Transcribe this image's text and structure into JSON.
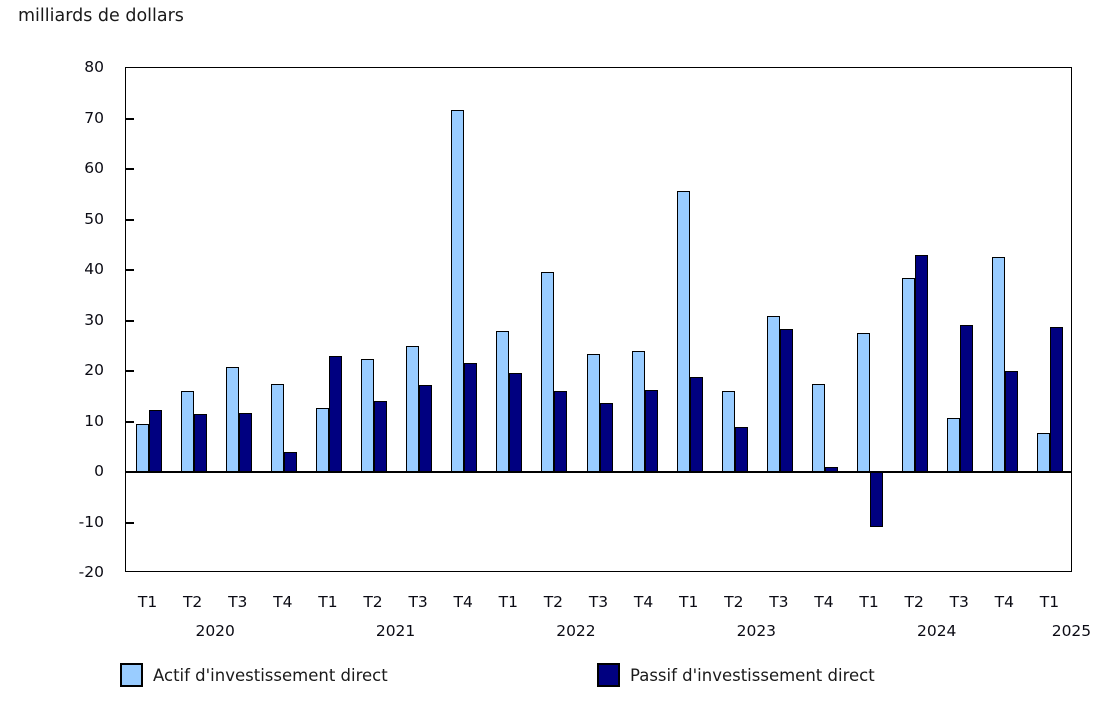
{
  "title": "milliards de dollars",
  "legend": [
    {
      "label": "Actif d'investissement direct",
      "color": "#99CCFF"
    },
    {
      "label": "Passif d'investissement direct",
      "color": "#000080"
    }
  ],
  "chart_data": {
    "type": "bar",
    "title": "milliards de dollars",
    "ylabel": "milliards de dollars",
    "xlabel": "",
    "ylim": [
      -20,
      80
    ],
    "y_ticks": [
      80,
      70,
      60,
      50,
      40,
      30,
      20,
      10,
      0,
      -10,
      -20
    ],
    "grid": false,
    "legend_position": "bottom",
    "quarter_labels": [
      "T1",
      "T2",
      "T3",
      "T4",
      "T1",
      "T2",
      "T3",
      "T4",
      "T1",
      "T2",
      "T3",
      "T4",
      "T1",
      "T2",
      "T3",
      "T4",
      "T1",
      "T2",
      "T3",
      "T4",
      "T1"
    ],
    "year_groups": [
      {
        "label": "2020",
        "start": 0,
        "count": 4
      },
      {
        "label": "2021",
        "start": 4,
        "count": 4
      },
      {
        "label": "2022",
        "start": 8,
        "count": 4
      },
      {
        "label": "2023",
        "start": 12,
        "count": 4
      },
      {
        "label": "2024",
        "start": 16,
        "count": 4
      },
      {
        "label": "2025",
        "start": 20,
        "count": 1
      }
    ],
    "categories": [
      "T1 2020",
      "T2 2020",
      "T3 2020",
      "T4 2020",
      "T1 2021",
      "T2 2021",
      "T3 2021",
      "T4 2021",
      "T1 2022",
      "T2 2022",
      "T3 2022",
      "T4 2022",
      "T1 2023",
      "T2 2023",
      "T3 2023",
      "T4 2023",
      "T1 2024",
      "T2 2024",
      "T3 2024",
      "T4 2024",
      "T1 2025"
    ],
    "series": [
      {
        "name": "Actif d'investissement direct",
        "color": "#99CCFF",
        "values": [
          9.5,
          16.0,
          20.8,
          17.4,
          12.6,
          22.4,
          24.9,
          71.6,
          27.9,
          39.6,
          23.4,
          24.0,
          55.7,
          16.1,
          30.9,
          17.5,
          27.6,
          38.4,
          10.7,
          42.6,
          7.7
        ]
      },
      {
        "name": "Passif d'investissement direct",
        "color": "#000080",
        "values": [
          12.3,
          11.4,
          11.7,
          4.0,
          22.9,
          14.0,
          17.2,
          21.5,
          19.6,
          16.0,
          13.6,
          16.3,
          18.8,
          9.0,
          28.3,
          0.9,
          -10.9,
          43.0,
          29.1,
          20.0,
          28.7
        ]
      }
    ]
  }
}
